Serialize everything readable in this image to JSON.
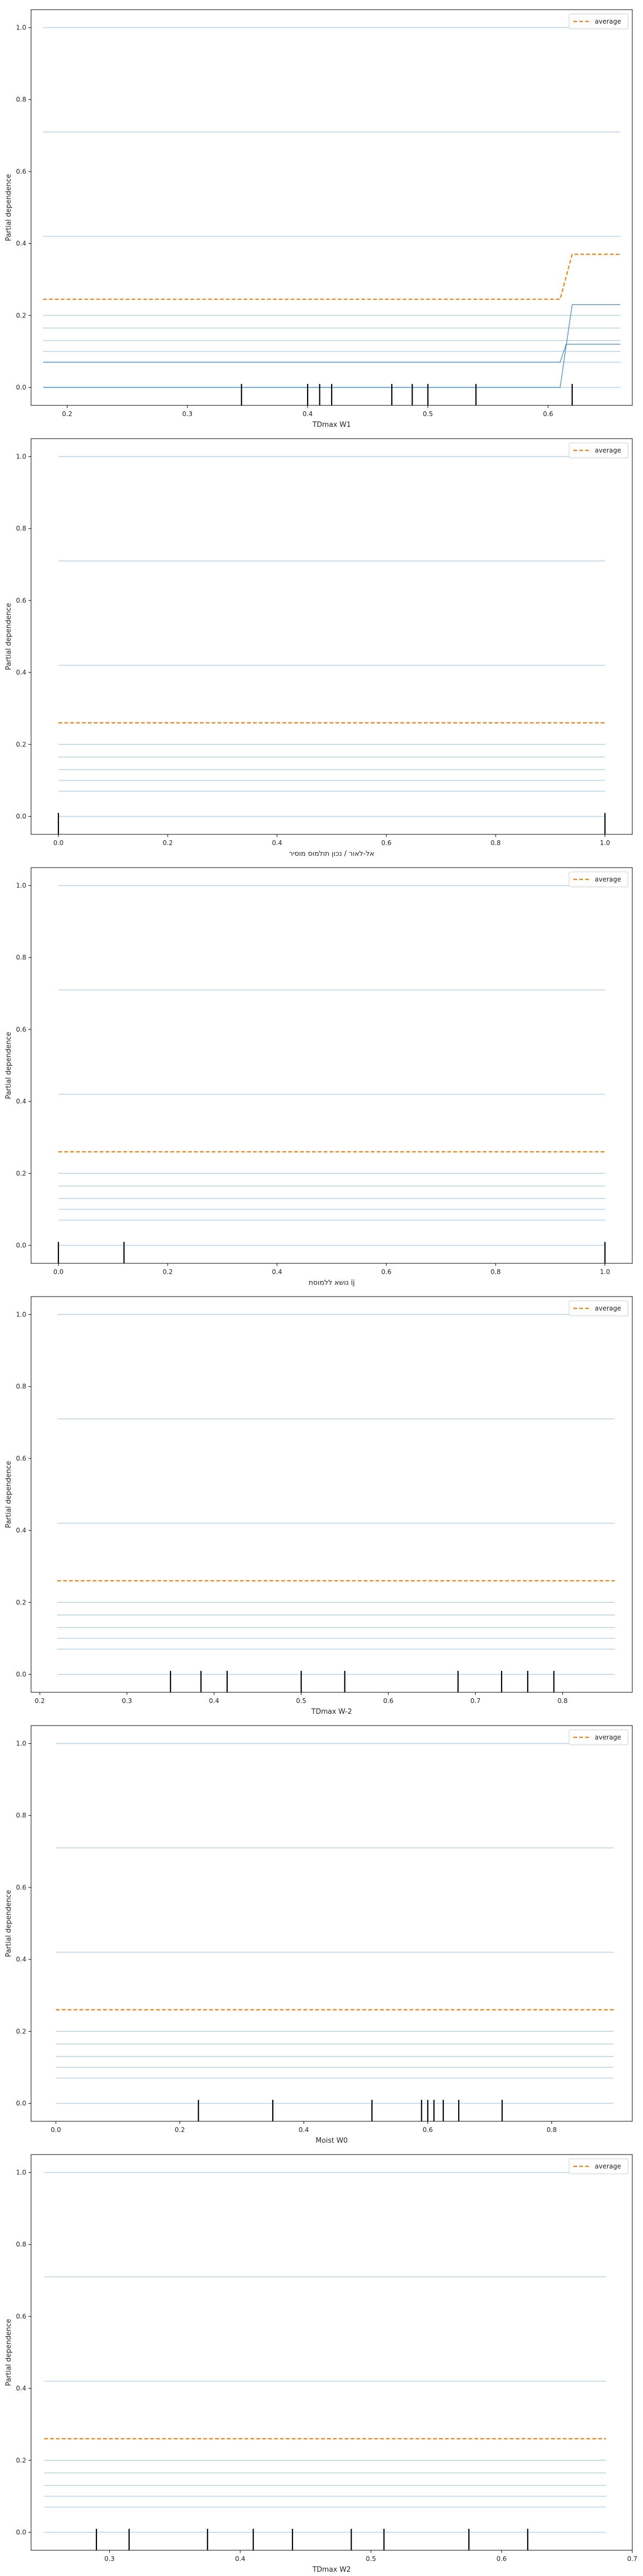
{
  "legend_label": "average",
  "ylabel": "Partial dependence",
  "chart_data": [
    {
      "type": "line",
      "xlabel": "TDmax W1",
      "ylabel": "Partial dependence",
      "xlim": [
        0.17,
        0.67
      ],
      "ylim": [
        -0.05,
        1.05
      ],
      "xticks": [
        0.2,
        0.3,
        0.4,
        0.5,
        0.6
      ],
      "yticks": [
        0.0,
        0.2,
        0.4,
        0.6,
        0.8,
        1.0
      ],
      "ice_levels": [
        1.0,
        0.71,
        0.42,
        0.2,
        0.165,
        0.13,
        0.1,
        0.07,
        0.0
      ],
      "ice_curves": [
        {
          "x": [
            0.18,
            0.61,
            0.62,
            0.66
          ],
          "y": [
            0.0,
            0.0,
            0.23,
            0.23
          ]
        },
        {
          "x": [
            0.18,
            0.61,
            0.615,
            0.66
          ],
          "y": [
            0.07,
            0.07,
            0.12,
            0.12
          ]
        }
      ],
      "average": {
        "x": [
          0.18,
          0.61,
          0.62,
          0.66
        ],
        "y": [
          0.245,
          0.245,
          0.37,
          0.37
        ]
      },
      "deciles": [
        0.345,
        0.4,
        0.41,
        0.42,
        0.47,
        0.487,
        0.5,
        0.54,
        0.62
      ]
    },
    {
      "type": "line",
      "xlabel": "אל-לאור / נכון תולמוס מוסיר",
      "ylabel": "Partial dependence",
      "xlim": [
        -0.05,
        1.05
      ],
      "ylim": [
        -0.05,
        1.05
      ],
      "xticks": [
        0.0,
        0.2,
        0.4,
        0.6,
        0.8,
        1.0
      ],
      "yticks": [
        0.0,
        0.2,
        0.4,
        0.6,
        0.8,
        1.0
      ],
      "ice_levels": [
        1.0,
        0.71,
        0.42,
        0.2,
        0.165,
        0.13,
        0.1,
        0.07,
        0.0
      ],
      "ice_curves": [],
      "average": {
        "x": [
          0.0,
          1.0
        ],
        "y": [
          0.26,
          0.26
        ]
      },
      "deciles": [
        0.0,
        1.0
      ]
    },
    {
      "type": "line",
      "xlabel": "נושא ללמוסת ij",
      "ylabel": "Partial dependence",
      "xlim": [
        -0.05,
        1.05
      ],
      "ylim": [
        -0.05,
        1.05
      ],
      "xticks": [
        0.0,
        0.2,
        0.4,
        0.6,
        0.8,
        1.0
      ],
      "yticks": [
        0.0,
        0.2,
        0.4,
        0.6,
        0.8,
        1.0
      ],
      "ice_levels": [
        1.0,
        0.71,
        0.42,
        0.2,
        0.165,
        0.13,
        0.1,
        0.07,
        0.0
      ],
      "ice_curves": [],
      "average": {
        "x": [
          0.0,
          1.0
        ],
        "y": [
          0.26,
          0.26
        ]
      },
      "deciles": [
        0.0,
        0.12,
        1.0
      ]
    },
    {
      "type": "line",
      "xlabel": "TDmax W-2",
      "ylabel": "Partial dependence",
      "xlim": [
        0.19,
        0.88
      ],
      "ylim": [
        -0.05,
        1.05
      ],
      "xticks": [
        0.2,
        0.3,
        0.4,
        0.5,
        0.6,
        0.7,
        0.8
      ],
      "yticks": [
        0.0,
        0.2,
        0.4,
        0.6,
        0.8,
        1.0
      ],
      "ice_levels": [
        1.0,
        0.71,
        0.42,
        0.2,
        0.165,
        0.13,
        0.1,
        0.07,
        0.0
      ],
      "ice_curves": [],
      "average": {
        "x": [
          0.22,
          0.86
        ],
        "y": [
          0.26,
          0.26
        ]
      },
      "deciles": [
        0.35,
        0.385,
        0.415,
        0.5,
        0.55,
        0.68,
        0.73,
        0.76,
        0.79
      ]
    },
    {
      "type": "line",
      "xlabel": "Moist W0",
      "ylabel": "Partial dependence",
      "xlim": [
        -0.04,
        0.93
      ],
      "ylim": [
        -0.05,
        1.05
      ],
      "xticks": [
        0.0,
        0.2,
        0.4,
        0.6,
        0.8
      ],
      "yticks": [
        0.0,
        0.2,
        0.4,
        0.6,
        0.8,
        1.0
      ],
      "ice_levels": [
        1.0,
        0.71,
        0.42,
        0.2,
        0.165,
        0.13,
        0.1,
        0.07,
        0.0
      ],
      "ice_curves": [],
      "average": {
        "x": [
          0.0,
          0.9
        ],
        "y": [
          0.26,
          0.26
        ]
      },
      "deciles": [
        0.23,
        0.35,
        0.51,
        0.59,
        0.6,
        0.61,
        0.625,
        0.65,
        0.72
      ]
    },
    {
      "type": "line",
      "xlabel": "TDmax W2",
      "ylabel": "Partial dependence",
      "xlim": [
        0.24,
        0.7
      ],
      "ylim": [
        -0.05,
        1.05
      ],
      "xticks": [
        0.3,
        0.4,
        0.5,
        0.6,
        0.7
      ],
      "yticks": [
        0.0,
        0.2,
        0.4,
        0.6,
        0.8,
        1.0
      ],
      "ice_levels": [
        1.0,
        0.71,
        0.42,
        0.2,
        0.165,
        0.13,
        0.1,
        0.07,
        0.0
      ],
      "ice_curves": [],
      "average": {
        "x": [
          0.25,
          0.68
        ],
        "y": [
          0.26,
          0.26
        ]
      },
      "deciles": [
        0.29,
        0.315,
        0.375,
        0.41,
        0.44,
        0.485,
        0.51,
        0.575,
        0.62
      ]
    }
  ],
  "colors": {
    "ice": "#1f77b4",
    "average": "#ff7f0e",
    "deciles": "#000000",
    "frame": "#000000",
    "text": "#222222"
  }
}
